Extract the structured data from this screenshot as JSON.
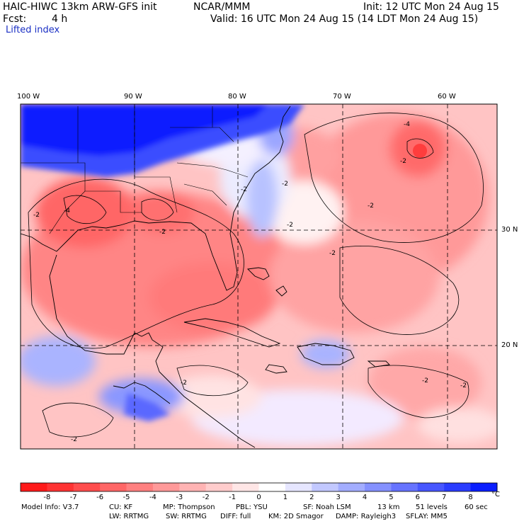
{
  "header": {
    "model": "HAIC-HIWC 13km ARW-GFS init",
    "org": "NCAR/MMM",
    "init": "Init: 12 UTC Mon 24 Aug 15",
    "fcst_label": "Fcst:",
    "fcst_value": "4 h",
    "valid": "Valid: 16 UTC Mon 24 Aug 15 (14 LDT Mon 24 Aug 15)",
    "field": "Lifted index"
  },
  "map": {
    "lon_labels": [
      "100 W",
      "90 W",
      "80 W",
      "70 W",
      "60 W"
    ],
    "lat_labels": [
      "30 N",
      "20 N"
    ],
    "contour_labels": [
      "-2",
      "-4",
      "-2",
      "-2",
      "-2",
      "-4",
      "-2",
      "-2",
      "-2",
      "-2",
      "-2",
      "-2",
      "-2",
      "-2"
    ]
  },
  "colorbar": {
    "ticks": [
      "-8",
      "-7",
      "-6",
      "-5",
      "-4",
      "-3",
      "-2",
      "-1",
      "0",
      "1",
      "2",
      "3",
      "4",
      "5",
      "6",
      "7",
      "8"
    ],
    "unit": "°C",
    "colors": [
      "#ff1a1a",
      "#ff3333",
      "#ff4d4d",
      "#ff6666",
      "#ff8080",
      "#ff9999",
      "#ffb3b3",
      "#ffcccc",
      "#ffe6e6",
      "#ffffff",
      "#e6e6ff",
      "#c2c8ff",
      "#a3adff",
      "#8591ff",
      "#6673ff",
      "#4756ff",
      "#2a3cff",
      "#0a1eff"
    ]
  },
  "model_info": {
    "line1": [
      "Model Info: V3.7",
      "CU: KF",
      "MP: Thompson",
      "PBL: YSU",
      "SF: Noah LSM",
      "13 km",
      "51 levels",
      "60 sec"
    ],
    "line2": [
      "LW: RRTMG",
      "SW: RRTMG",
      "DIFF: full",
      "KM: 2D Smagor",
      "DAMP: Rayleigh3",
      "SFLAY: MM5"
    ]
  }
}
